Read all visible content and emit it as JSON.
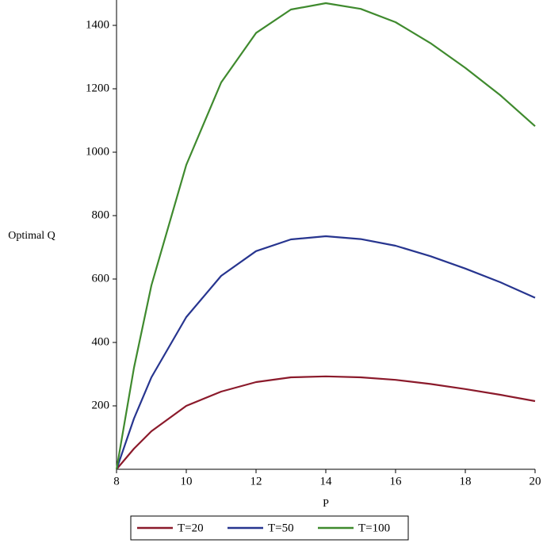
{
  "chart_data": {
    "type": "line",
    "x_label": "P",
    "y_label": "Optimal Q",
    "x": [
      8,
      8.5,
      9,
      10,
      11,
      12,
      13,
      14,
      15,
      16,
      17,
      18,
      19,
      20
    ],
    "series": [
      {
        "name": "T=20",
        "color": "#8b1a2b",
        "values": [
          0,
          65,
          120,
          200,
          245,
          275,
          290,
          293,
          290,
          282,
          269,
          253,
          235,
          215
        ]
      },
      {
        "name": "T=50",
        "color": "#27358f",
        "values": [
          0,
          160,
          290,
          480,
          610,
          688,
          725,
          735,
          726,
          705,
          672,
          633,
          590,
          541
        ]
      },
      {
        "name": "T=100",
        "color": "#3f8a2e",
        "values": [
          0,
          320,
          580,
          960,
          1220,
          1376,
          1450,
          1470,
          1452,
          1410,
          1344,
          1266,
          1180,
          1082
        ]
      }
    ],
    "xlim": [
      8,
      20
    ],
    "xticks": [
      8,
      10,
      12,
      14,
      16,
      18,
      20
    ],
    "ylim": [
      0,
      1480
    ],
    "yticks": [
      200,
      400,
      600,
      800,
      1000,
      1200,
      1400
    ],
    "grid": false,
    "legend": "bottom"
  }
}
